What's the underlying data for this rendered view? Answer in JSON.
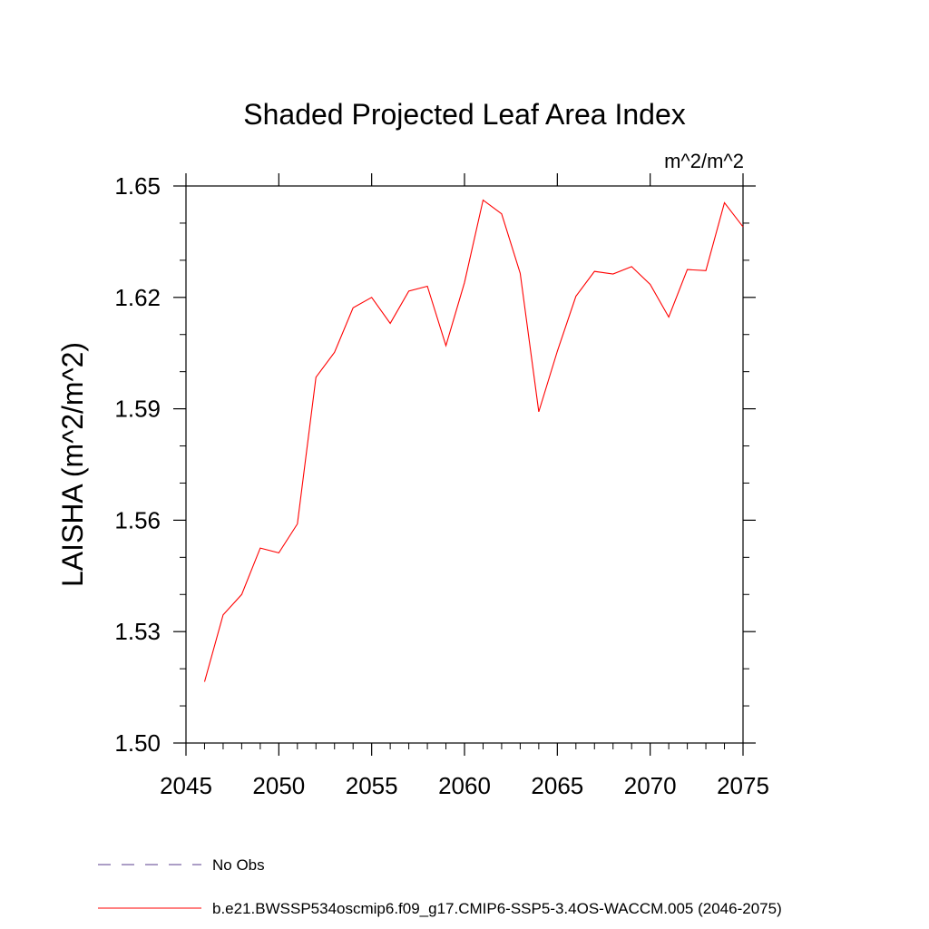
{
  "chart_data": {
    "type": "line",
    "title": "Shaded Projected Leaf Area Index",
    "units": "m^2/m^2",
    "ylabel": "LAISHA  (m^2/m^2)",
    "xlabel": "",
    "xlim": [
      2045,
      2075
    ],
    "ylim": [
      1.5,
      1.65
    ],
    "xticks": [
      "2045",
      "2050",
      "2055",
      "2060",
      "2065",
      "2070",
      "2075"
    ],
    "yticks": [
      "1.50",
      "1.53",
      "1.56",
      "1.59",
      "1.62",
      "1.65"
    ],
    "grid": false,
    "legend_position": "bottom",
    "series": [
      {
        "name": "No Obs",
        "color": "#5a3c8c",
        "dash": "dashed",
        "x": [],
        "values": []
      },
      {
        "name": "b.e21.BWSSP534oscmip6.f09_g17.CMIP6-SSP5-3.4OS-WACCM.005 (2046-2075)",
        "color": "#ff0000",
        "dash": "solid",
        "x": [
          2046,
          2047,
          2048,
          2049,
          2050,
          2051,
          2052,
          2053,
          2054,
          2055,
          2056,
          2057,
          2058,
          2059,
          2060,
          2061,
          2062,
          2063,
          2064,
          2065,
          2066,
          2067,
          2068,
          2069,
          2070,
          2071,
          2072,
          2073,
          2074,
          2075
        ],
        "values": [
          1.5165,
          1.5345,
          1.54,
          1.5525,
          1.5512,
          1.559,
          1.5985,
          1.6052,
          1.6172,
          1.62,
          1.613,
          1.6217,
          1.623,
          1.607,
          1.624,
          1.6462,
          1.6425,
          1.6265,
          1.5892,
          1.6055,
          1.6203,
          1.627,
          1.6263,
          1.6283,
          1.6235,
          1.6147,
          1.6275,
          1.6272,
          1.6455,
          1.639
        ]
      }
    ]
  }
}
